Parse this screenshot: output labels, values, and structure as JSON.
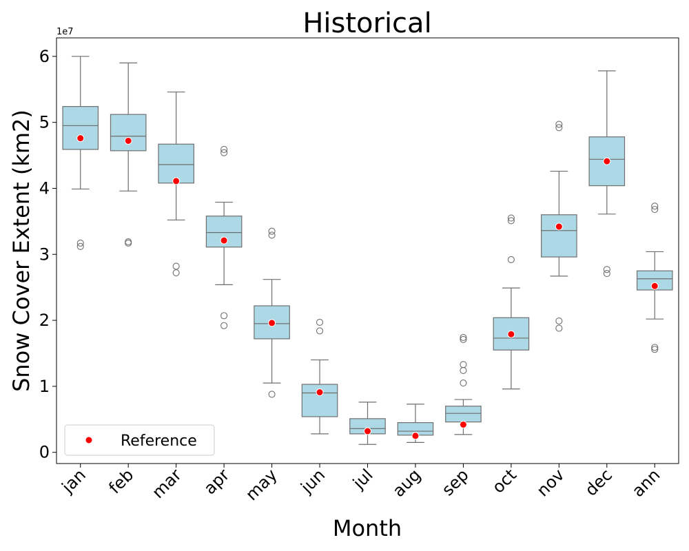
{
  "chart_data": {
    "type": "box",
    "title": "Historical",
    "xlabel": "Month",
    "ylabel": "Snow Cover Extent (km2)",
    "y_multiplier_label": "1e7",
    "y_multiplier": 10000000,
    "ylim": [
      -0.17,
      6.28
    ],
    "yticks": [
      0,
      1,
      2,
      3,
      4,
      5,
      6
    ],
    "categories": [
      "jan",
      "feb",
      "mar",
      "apr",
      "may",
      "jun",
      "jul",
      "aug",
      "sep",
      "oct",
      "nov",
      "dec",
      "ann"
    ],
    "colors": {
      "box_fill": "#add8e6",
      "box_edge": "#6e6e6e",
      "reference": "#ff0000"
    },
    "legend": {
      "label": "Reference",
      "position": "lower-left"
    },
    "boxes": [
      {
        "category": "jan",
        "whisker_low": 3.99,
        "q1": 4.59,
        "median": 4.95,
        "q3": 5.24,
        "whisker_high": 6.0,
        "outliers": [
          3.17,
          3.12
        ],
        "reference": 4.76
      },
      {
        "category": "feb",
        "whisker_low": 3.96,
        "q1": 4.57,
        "median": 4.79,
        "q3": 5.12,
        "whisker_high": 5.9,
        "outliers": [
          3.19,
          3.17
        ],
        "reference": 4.72
      },
      {
        "category": "mar",
        "whisker_low": 3.52,
        "q1": 4.08,
        "median": 4.36,
        "q3": 4.67,
        "whisker_high": 5.46,
        "outliers": [
          2.82,
          2.72
        ],
        "reference": 4.11
      },
      {
        "category": "apr",
        "whisker_low": 2.54,
        "q1": 3.11,
        "median": 3.33,
        "q3": 3.58,
        "whisker_high": 3.79,
        "outliers": [
          4.59,
          4.54,
          2.07,
          1.92
        ],
        "reference": 3.21
      },
      {
        "category": "may",
        "whisker_low": 1.05,
        "q1": 1.72,
        "median": 1.95,
        "q3": 2.22,
        "whisker_high": 2.62,
        "outliers": [
          3.35,
          3.29,
          0.88
        ],
        "reference": 1.96
      },
      {
        "category": "jun",
        "whisker_low": 0.28,
        "q1": 0.54,
        "median": 0.9,
        "q3": 1.03,
        "whisker_high": 1.4,
        "outliers": [
          1.97,
          1.84
        ],
        "reference": 0.91
      },
      {
        "category": "jul",
        "whisker_low": 0.12,
        "q1": 0.28,
        "median": 0.36,
        "q3": 0.51,
        "whisker_high": 0.76,
        "outliers": [],
        "reference": 0.32
      },
      {
        "category": "aug",
        "whisker_low": 0.15,
        "q1": 0.26,
        "median": 0.32,
        "q3": 0.45,
        "whisker_high": 0.73,
        "outliers": [],
        "reference": 0.25
      },
      {
        "category": "sep",
        "whisker_low": 0.27,
        "q1": 0.46,
        "median": 0.59,
        "q3": 0.7,
        "whisker_high": 0.8,
        "outliers": [
          1.74,
          1.71,
          1.33,
          1.24,
          1.05
        ],
        "reference": 0.42
      },
      {
        "category": "oct",
        "whisker_low": 0.96,
        "q1": 1.55,
        "median": 1.73,
        "q3": 2.04,
        "whisker_high": 2.49,
        "outliers": [
          3.55,
          3.51,
          2.92
        ],
        "reference": 1.79
      },
      {
        "category": "nov",
        "whisker_low": 2.67,
        "q1": 2.96,
        "median": 3.36,
        "q3": 3.6,
        "whisker_high": 4.26,
        "outliers": [
          4.97,
          4.92,
          1.99,
          1.88
        ],
        "reference": 3.42
      },
      {
        "category": "dec",
        "whisker_low": 3.61,
        "q1": 4.04,
        "median": 4.44,
        "q3": 4.78,
        "whisker_high": 5.78,
        "outliers": [
          2.77,
          2.71
        ],
        "reference": 4.41
      },
      {
        "category": "ann",
        "whisker_low": 2.02,
        "q1": 2.46,
        "median": 2.63,
        "q3": 2.75,
        "whisker_high": 3.04,
        "outliers": [
          3.73,
          3.68,
          1.59,
          1.56
        ],
        "reference": 2.52
      }
    ]
  }
}
